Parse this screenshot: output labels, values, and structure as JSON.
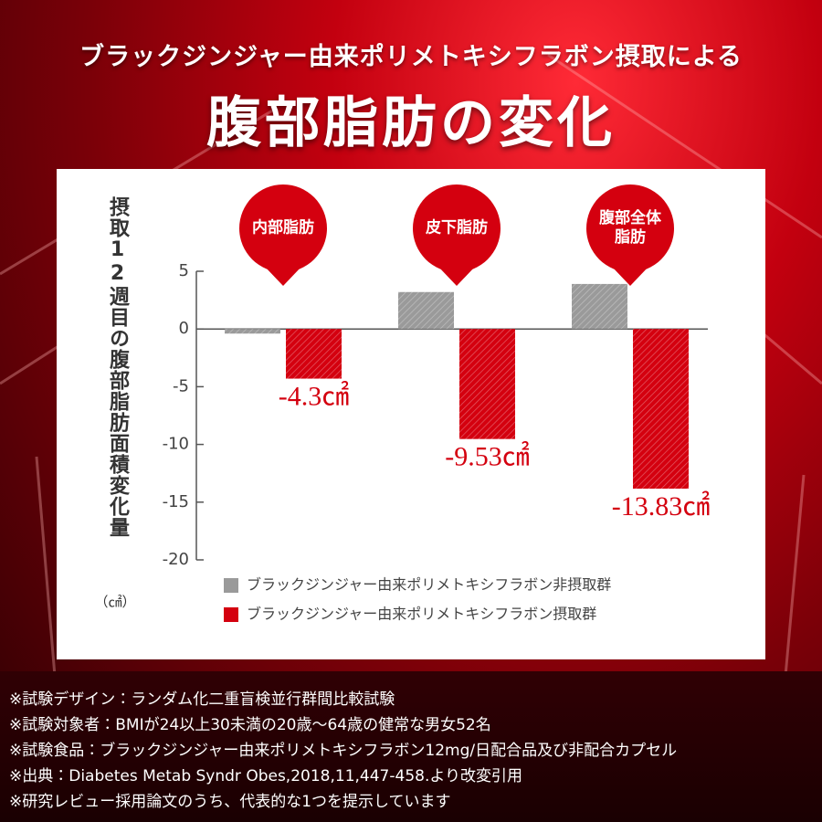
{
  "chart_data": {
    "type": "bar",
    "subtitle": "ブラックジンジャー由来ポリメトキシフラボン摂取による",
    "title": "腹部脂肪の変化",
    "y_label": "摂取12週目の腹部脂肪面積変化量",
    "y_unit": "（㎠）",
    "categories": [
      "内部脂肪",
      "皮下脂肪",
      "腹部全体\n脂肪"
    ],
    "series": [
      {
        "name": "ブラックジンジャー由来ポリメトキシフラボン非摂取群",
        "color": "#9a9a9a",
        "values": [
          -0.4,
          3.2,
          3.9
        ]
      },
      {
        "name": "ブラックジンジャー由来ポリメトキシフラボン摂取群",
        "color": "#d4000f",
        "values": [
          -4.3,
          -9.53,
          -13.83
        ],
        "value_labels": [
          "-4.3㎠",
          "-9.53㎠",
          "-13.83㎠"
        ]
      }
    ],
    "ylim": [
      -20,
      5
    ],
    "yticks": [
      5,
      0,
      -5,
      -10,
      -15,
      -20
    ],
    "grid": false
  },
  "notes": [
    "※試験デザイン：ランダム化二重盲検並行群間比較試験",
    "※試験対象者：BMIが24以上30未満の20歳～64歳の健常な男女52名",
    "※試験食品：ブラックジンジャー由来ポリメトキシフラボン12mg/日配合品及び非配合カプセル",
    "※出典：Diabetes Metab Syndr Obes,2018,11,447-458.より改変引用",
    "※研究レビュー採用論文のうち、代表的な1つを提示しています"
  ]
}
